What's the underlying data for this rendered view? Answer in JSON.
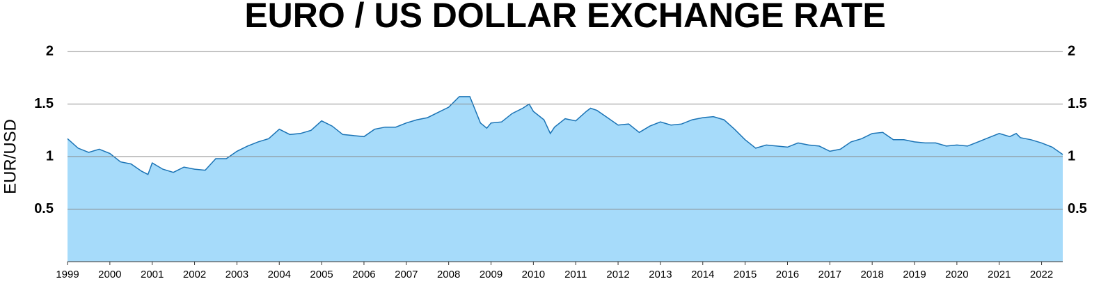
{
  "chart_data": {
    "type": "area",
    "title": "EURO / US DOLLAR EXCHANGE RATE",
    "y_label": "EUR/USD",
    "color": "#a6dbfa",
    "line_color": "#1a73b5",
    "grid": true,
    "xlim": [
      1999,
      2022.5
    ],
    "ylim": [
      0,
      2
    ],
    "xticks": [
      1999,
      2000,
      2001,
      2002,
      2003,
      2004,
      2005,
      2006,
      2007,
      2008,
      2009,
      2010,
      2011,
      2012,
      2013,
      2014,
      2015,
      2016,
      2017,
      2018,
      2019,
      2020,
      2021,
      2022
    ],
    "yticks": [
      0.5,
      1,
      1.5,
      2
    ],
    "x": [
      1999,
      1999.25,
      1999.5,
      1999.75,
      2000,
      2000.25,
      2000.5,
      2000.75,
      2000.9,
      2001,
      2001.25,
      2001.5,
      2001.75,
      2002,
      2002.25,
      2002.5,
      2002.75,
      2003,
      2003.25,
      2003.5,
      2003.75,
      2004,
      2004.25,
      2004.5,
      2004.75,
      2005,
      2005.25,
      2005.5,
      2005.75,
      2006,
      2006.25,
      2006.5,
      2006.75,
      2007,
      2007.25,
      2007.5,
      2007.75,
      2008,
      2008.25,
      2008.5,
      2008.75,
      2008.9,
      2009,
      2009.25,
      2009.5,
      2009.75,
      2009.9,
      2010,
      2010.25,
      2010.4,
      2010.5,
      2010.75,
      2011,
      2011.25,
      2011.35,
      2011.5,
      2011.75,
      2012,
      2012.25,
      2012.5,
      2012.75,
      2013,
      2013.25,
      2013.5,
      2013.75,
      2014,
      2014.25,
      2014.5,
      2014.75,
      2015,
      2015.25,
      2015.5,
      2015.75,
      2016,
      2016.25,
      2016.5,
      2016.75,
      2017,
      2017.25,
      2017.5,
      2017.75,
      2018,
      2018.25,
      2018.5,
      2018.75,
      2019,
      2019.25,
      2019.5,
      2019.75,
      2020,
      2020.25,
      2020.5,
      2020.75,
      2021,
      2021.25,
      2021.4,
      2021.5,
      2021.75,
      2022,
      2022.25,
      2022.5
    ],
    "values": [
      1.17,
      1.08,
      1.04,
      1.07,
      1.03,
      0.95,
      0.93,
      0.86,
      0.83,
      0.94,
      0.88,
      0.85,
      0.9,
      0.88,
      0.87,
      0.98,
      0.98,
      1.05,
      1.1,
      1.14,
      1.17,
      1.26,
      1.21,
      1.22,
      1.25,
      1.34,
      1.29,
      1.21,
      1.2,
      1.19,
      1.26,
      1.28,
      1.28,
      1.32,
      1.35,
      1.37,
      1.42,
      1.47,
      1.57,
      1.57,
      1.32,
      1.27,
      1.32,
      1.33,
      1.41,
      1.46,
      1.5,
      1.43,
      1.35,
      1.22,
      1.28,
      1.36,
      1.34,
      1.43,
      1.46,
      1.44,
      1.37,
      1.3,
      1.31,
      1.23,
      1.29,
      1.33,
      1.3,
      1.31,
      1.35,
      1.37,
      1.38,
      1.35,
      1.26,
      1.16,
      1.08,
      1.11,
      1.1,
      1.09,
      1.13,
      1.11,
      1.1,
      1.05,
      1.07,
      1.14,
      1.17,
      1.22,
      1.23,
      1.16,
      1.16,
      1.14,
      1.13,
      1.13,
      1.1,
      1.11,
      1.1,
      1.14,
      1.18,
      1.22,
      1.19,
      1.22,
      1.18,
      1.16,
      1.13,
      1.09,
      1.02
    ]
  }
}
